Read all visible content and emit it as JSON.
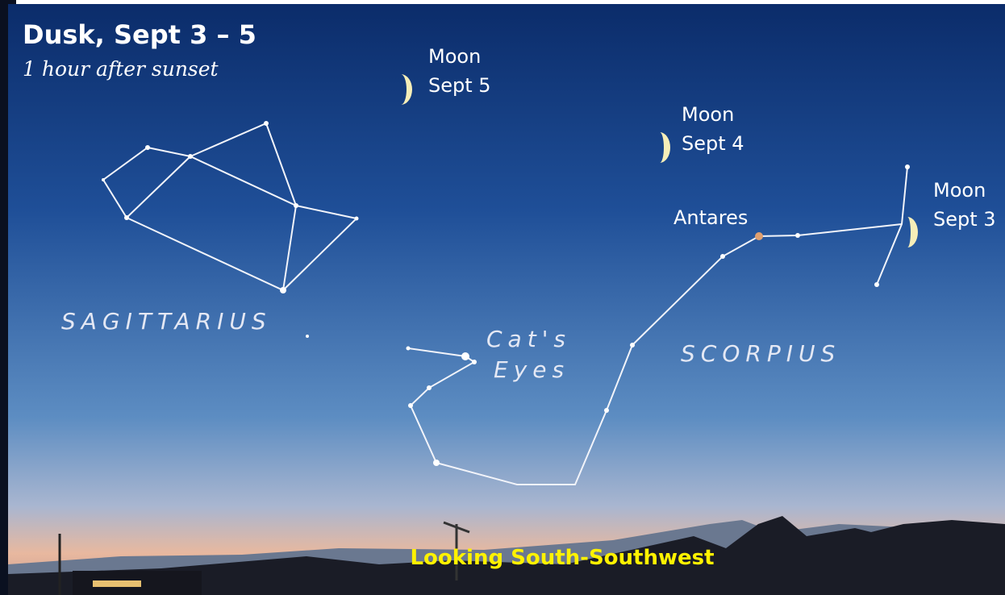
{
  "header": {
    "title": "Dusk, Sept 3 – 5",
    "subtitle": "1 hour after sunset"
  },
  "moons": [
    {
      "label": "Moon",
      "date": "Sept 5"
    },
    {
      "label": "Moon",
      "date": "Sept 4"
    },
    {
      "label": "Moon",
      "date": "Sept 3"
    }
  ],
  "labels": {
    "antares": "Antares",
    "sagittarius": "SAGITTARIUS",
    "cats_eyes": [
      "Cat's",
      "Eyes"
    ],
    "scorpius": "SCORPIUS"
  },
  "footer": "Looking South-Southwest"
}
